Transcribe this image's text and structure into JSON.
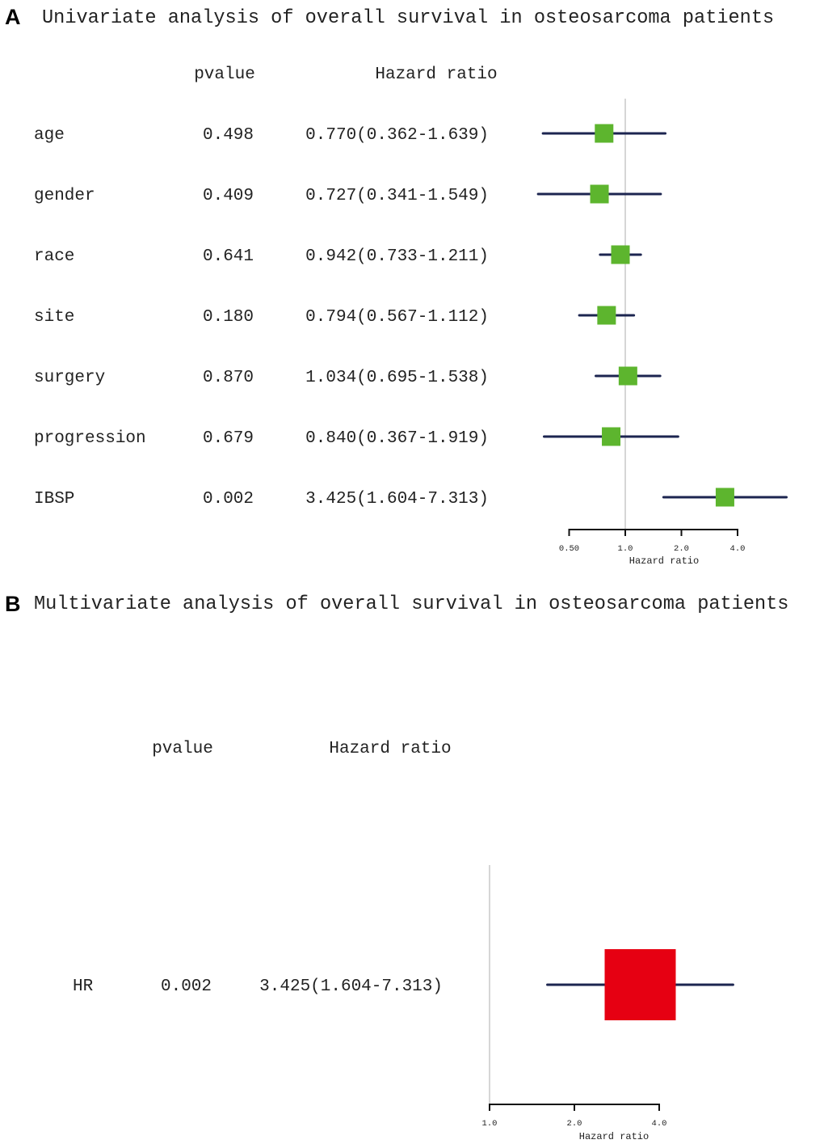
{
  "chart_data": [
    {
      "type": "forest",
      "panel_label": "A",
      "title": "Univariate analysis of overall survival in osteosarcoma patients",
      "column_headers": {
        "pvalue": "pvalue",
        "hr": "Hazard ratio"
      },
      "xlabel": "Hazard ratio",
      "x_scale": "log2",
      "x_ticks": [
        0.5,
        1.0,
        2.0,
        4.0
      ],
      "x_tick_labels": [
        "0.50",
        "1.0",
        "2.0",
        "4.0"
      ],
      "reference_line": 1.0,
      "marker_color": "#5db52e",
      "ci_color": "#1c2550",
      "rows": [
        {
          "label": "age",
          "pvalue": "0.498",
          "hr_text": "0.770(0.362-1.639)",
          "hr": 0.77,
          "lo": 0.362,
          "hi": 1.639
        },
        {
          "label": "gender",
          "pvalue": "0.409",
          "hr_text": "0.727(0.341-1.549)",
          "hr": 0.727,
          "lo": 0.341,
          "hi": 1.549
        },
        {
          "label": "race",
          "pvalue": "0.641",
          "hr_text": "0.942(0.733-1.211)",
          "hr": 0.942,
          "lo": 0.733,
          "hi": 1.211
        },
        {
          "label": "site",
          "pvalue": "0.180",
          "hr_text": "0.794(0.567-1.112)",
          "hr": 0.794,
          "lo": 0.567,
          "hi": 1.112
        },
        {
          "label": "surgery",
          "pvalue": "0.870",
          "hr_text": "1.034(0.695-1.538)",
          "hr": 1.034,
          "lo": 0.695,
          "hi": 1.538
        },
        {
          "label": "progression",
          "pvalue": "0.679",
          "hr_text": "0.840(0.367-1.919)",
          "hr": 0.84,
          "lo": 0.367,
          "hi": 1.919
        },
        {
          "label": "IBSP",
          "pvalue": "0.002",
          "hr_text": "3.425(1.604-7.313)",
          "hr": 3.425,
          "lo": 1.604,
          "hi": 7.313
        }
      ]
    },
    {
      "type": "forest",
      "panel_label": "B",
      "title": "Multivariate analysis of overall survival in osteosarcoma patients",
      "column_headers": {
        "pvalue": "pvalue",
        "hr": "Hazard ratio"
      },
      "xlabel": "Hazard ratio",
      "x_scale": "log2",
      "x_ticks": [
        1.0,
        2.0,
        4.0
      ],
      "x_tick_labels": [
        "1.0",
        "2.0",
        "4.0"
      ],
      "reference_line": 1.0,
      "marker_color": "#e60012",
      "ci_color": "#1c2550",
      "rows": [
        {
          "label": "HR",
          "pvalue": "0.002",
          "hr_text": "3.425(1.604-7.313)",
          "hr": 3.425,
          "lo": 1.604,
          "hi": 7.313
        }
      ]
    }
  ]
}
